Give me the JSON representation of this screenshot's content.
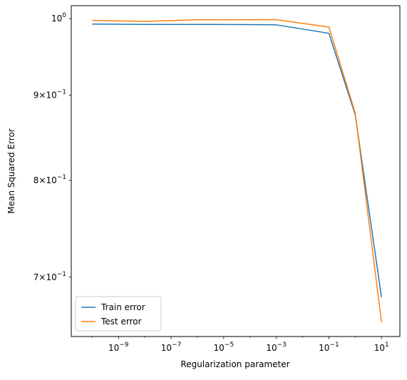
{
  "chart_data": {
    "type": "line",
    "xlabel": "Regularization parameter",
    "ylabel": "Mean Squared Error",
    "xscale": "log",
    "yscale": "log",
    "xlim": [
      1.6e-11,
      50
    ],
    "ylim": [
      0.645,
      1.018
    ],
    "x": [
      1e-10,
      1e-08,
      1e-06,
      0.0001,
      0.001,
      0.1,
      1,
      10
    ],
    "series": [
      {
        "name": "Train error",
        "color": "#1f77b4",
        "values": [
          0.9925,
          0.992,
          0.992,
          0.9918,
          0.9915,
          0.98,
          0.876,
          0.681
        ]
      },
      {
        "name": "Test error",
        "color": "#ff7f0e",
        "values": [
          0.9975,
          0.9962,
          0.9985,
          0.9985,
          0.9985,
          0.9885,
          0.878,
          0.658
        ]
      }
    ],
    "x_ticks": [
      {
        "value": 1e-09,
        "base": "10",
        "exp": "−9"
      },
      {
        "value": 1e-07,
        "base": "10",
        "exp": "−7"
      },
      {
        "value": 1e-05,
        "base": "10",
        "exp": "−5"
      },
      {
        "value": 0.001,
        "base": "10",
        "exp": "−3"
      },
      {
        "value": 0.1,
        "base": "10",
        "exp": "−1"
      },
      {
        "value": 10,
        "base": "10",
        "exp": "1"
      }
    ],
    "y_ticks": [
      {
        "value": 1.0,
        "mant": "",
        "base": "10",
        "exp": "0"
      },
      {
        "value": 0.9,
        "mant": "9×",
        "base": "10",
        "exp": "−1"
      },
      {
        "value": 0.8,
        "mant": "8×",
        "base": "10",
        "exp": "−1"
      },
      {
        "value": 0.7,
        "mant": "7×",
        "base": "10",
        "exp": "−1"
      }
    ],
    "legend_position": "lower-left",
    "grid": false
  }
}
